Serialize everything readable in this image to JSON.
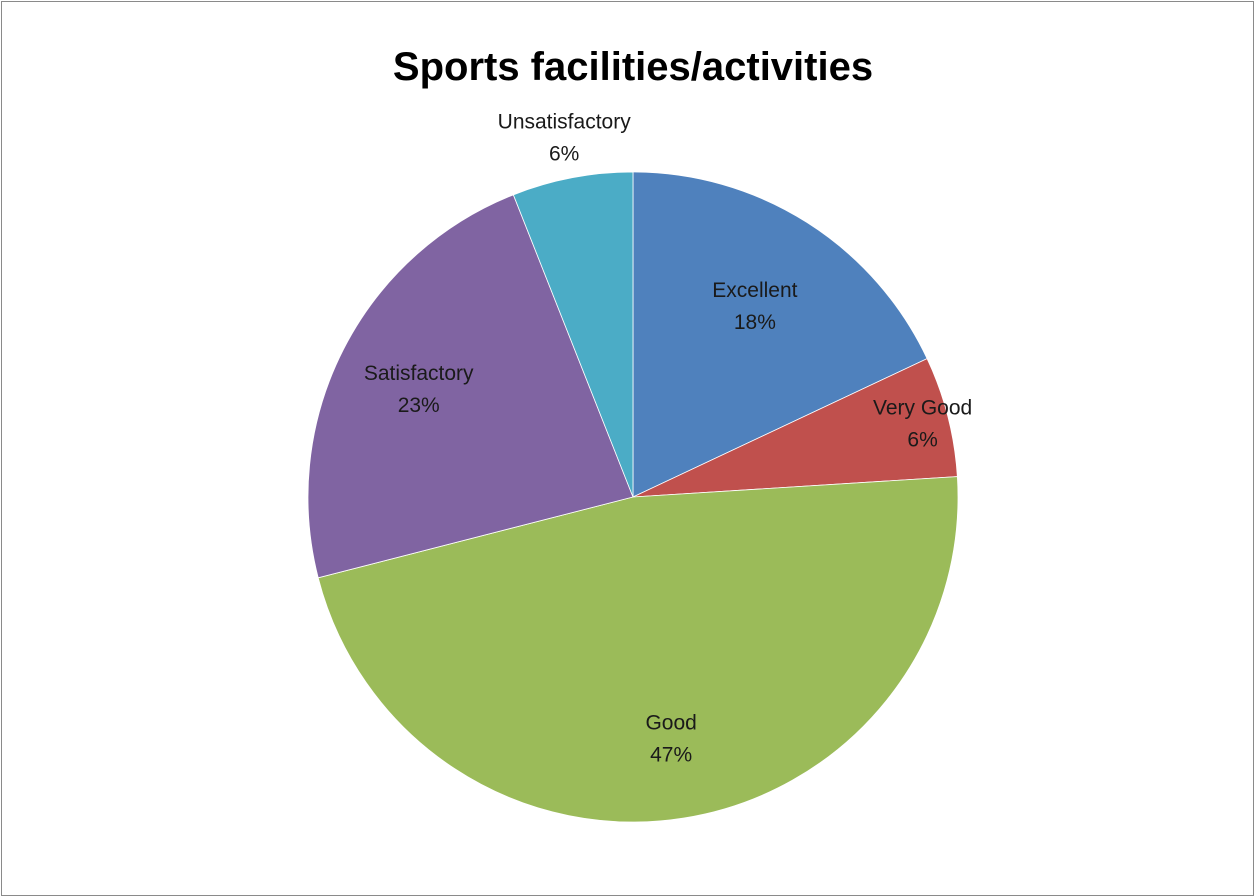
{
  "chart_data": {
    "type": "pie",
    "title": "Sports facilities/activities",
    "slices": [
      {
        "label": "Excellent",
        "value": 18,
        "value_text": "18%",
        "color": "#4F81BD"
      },
      {
        "label": "Very Good",
        "value": 6,
        "value_text": "6%",
        "color": "#C0504D"
      },
      {
        "label": "Good",
        "value": 47,
        "value_text": "47%",
        "color": "#9BBB59"
      },
      {
        "label": "Satisfactory",
        "value": 23,
        "value_text": "23%",
        "color": "#8064A2"
      },
      {
        "label": "Unsatisfactory",
        "value": 6,
        "value_text": "6%",
        "color": "#4BACC6"
      }
    ],
    "start_angle": "top",
    "direction": "clockwise",
    "legend": "none",
    "data_labels": "category and percentage"
  }
}
